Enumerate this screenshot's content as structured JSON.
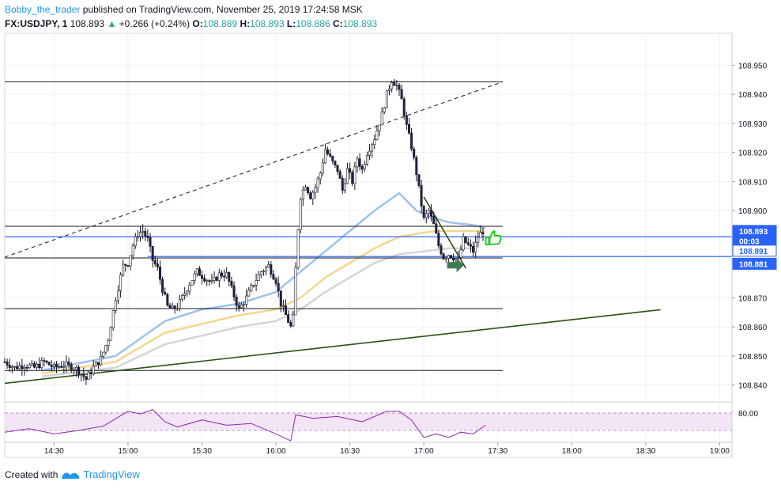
{
  "header": {
    "author": "Bobby_the_trader",
    "published": "published on TradingView.com, November 25, 2019 17:24:58 MSK",
    "symbol": "FX:USDJPY, 1",
    "last": "108.893",
    "arrow": "▲",
    "change": "+0.266 (+0.24%)",
    "o_label": "O:",
    "o": "108.889",
    "h_label": "H:",
    "h": "108.893",
    "l_label": "L:",
    "l": "108.886",
    "c_label": "C:",
    "c": "108.893"
  },
  "footer": {
    "created_with": "Created with",
    "brand": "TradingView"
  },
  "colors": {
    "grid": "#eef0f3",
    "text": "#131722",
    "accent": "#2196f3",
    "candle": "#131722",
    "candle_body": "#2a1f4a",
    "ma_blue": "#9cc2ec",
    "ma_yellow": "#f3d78c",
    "ma_gray": "#d4d4d4",
    "trendline": "#2e4f12",
    "hline_blue": "#2962ff",
    "rsi_line": "#8e24aa",
    "rsi_fill": "#f3e5f5",
    "arrow_green": "#3c7a52",
    "thumb_green": "#22cc22"
  },
  "chart_data": {
    "type": "line",
    "title": "FX:USDJPY, 1",
    "xlabel": "",
    "ylabel": "",
    "x_ticks": [
      "14:30",
      "15:00",
      "15:30",
      "16:00",
      "16:30",
      "17:00",
      "17:30",
      "18:00",
      "18:30",
      "19:00"
    ],
    "y_ticks": [
      "108.950",
      "108.940",
      "108.930",
      "108.920",
      "108.910",
      "108.900",
      "108.870",
      "108.860",
      "108.850",
      "108.840"
    ],
    "ylim": [
      108.835,
      108.961
    ],
    "price_labels": [
      {
        "text": "108.893",
        "price": 108.893,
        "style": "solid"
      },
      {
        "text": "00:03",
        "price": 108.8895,
        "style": "solid"
      },
      {
        "text": "108.891",
        "price": 108.8862,
        "style": "outline"
      },
      {
        "text": "108.881",
        "price": 108.8817,
        "style": "solid"
      }
    ],
    "close_series": [
      [
        "14:10",
        108.848
      ],
      [
        "14:14",
        108.846
      ],
      [
        "14:18",
        108.847
      ],
      [
        "14:22",
        108.846
      ],
      [
        "14:26",
        108.848
      ],
      [
        "14:30",
        108.846
      ],
      [
        "14:34",
        108.847
      ],
      [
        "14:38",
        108.846
      ],
      [
        "14:40",
        108.845
      ],
      [
        "14:43",
        108.842
      ],
      [
        "14:46",
        108.846
      ],
      [
        "14:49",
        108.849
      ],
      [
        "14:52",
        108.856
      ],
      [
        "14:55",
        108.87
      ],
      [
        "14:58",
        108.881
      ],
      [
        "15:00",
        108.882
      ],
      [
        "15:02",
        108.888
      ],
      [
        "15:04",
        108.892
      ],
      [
        "15:06",
        108.893
      ],
      [
        "15:08",
        108.89
      ],
      [
        "15:10",
        108.883
      ],
      [
        "15:12",
        108.88
      ],
      [
        "15:14",
        108.873
      ],
      [
        "15:16",
        108.867
      ],
      [
        "15:18",
        108.866
      ],
      [
        "15:20",
        108.867
      ],
      [
        "15:22",
        108.87
      ],
      [
        "15:25",
        108.875
      ],
      [
        "15:28",
        108.879
      ],
      [
        "15:31",
        108.877
      ],
      [
        "15:34",
        108.875
      ],
      [
        "15:37",
        108.878
      ],
      [
        "15:40",
        108.878
      ],
      [
        "15:42",
        108.873
      ],
      [
        "15:45",
        108.866
      ],
      [
        "15:48",
        108.87
      ],
      [
        "15:51",
        108.875
      ],
      [
        "15:54",
        108.879
      ],
      [
        "15:57",
        108.881
      ],
      [
        "16:00",
        108.876
      ],
      [
        "16:02",
        108.868
      ],
      [
        "16:04",
        108.864
      ],
      [
        "16:06",
        108.86
      ],
      [
        "16:07",
        108.863
      ],
      [
        "16:08",
        108.88
      ],
      [
        "16:09",
        108.894
      ],
      [
        "16:10",
        108.905
      ],
      [
        "16:12",
        108.909
      ],
      [
        "16:14",
        108.905
      ],
      [
        "16:16",
        108.908
      ],
      [
        "16:18",
        108.913
      ],
      [
        "16:20",
        108.921
      ],
      [
        "16:22",
        108.918
      ],
      [
        "16:24",
        108.915
      ],
      [
        "16:25",
        108.914
      ],
      [
        "16:27",
        108.907
      ],
      [
        "16:29",
        108.914
      ],
      [
        "16:31",
        108.91
      ],
      [
        "16:33",
        108.918
      ],
      [
        "16:35",
        108.914
      ],
      [
        "16:37",
        108.92
      ],
      [
        "16:40",
        108.925
      ],
      [
        "16:43",
        108.933
      ],
      [
        "16:45",
        108.94
      ],
      [
        "16:47",
        108.945
      ],
      [
        "16:49",
        108.943
      ],
      [
        "16:51",
        108.938
      ],
      [
        "16:53",
        108.929
      ],
      [
        "16:55",
        108.922
      ],
      [
        "16:57",
        108.913
      ],
      [
        "16:59",
        108.902
      ],
      [
        "17:00",
        108.897
      ],
      [
        "17:02",
        108.9
      ],
      [
        "17:04",
        108.895
      ],
      [
        "17:06",
        108.888
      ],
      [
        "17:08",
        108.884
      ],
      [
        "17:10",
        108.885
      ],
      [
        "17:12",
        108.884
      ],
      [
        "17:14",
        108.883
      ],
      [
        "17:16",
        108.89
      ],
      [
        "17:18",
        108.888
      ],
      [
        "17:20",
        108.886
      ],
      [
        "17:22",
        108.891
      ],
      [
        "17:24",
        108.893
      ]
    ],
    "moving_averages": [
      {
        "color_key": "ma_blue",
        "points": [
          [
            "14:25",
            108.845
          ],
          [
            "14:55",
            108.85
          ],
          [
            "15:05",
            108.856
          ],
          [
            "15:15",
            108.862
          ],
          [
            "15:30",
            108.866
          ],
          [
            "15:45",
            108.868
          ],
          [
            "16:00",
            108.872
          ],
          [
            "16:10",
            108.879
          ],
          [
            "16:20",
            108.886
          ],
          [
            "16:30",
            108.893
          ],
          [
            "16:40",
            108.9
          ],
          [
            "16:50",
            108.906
          ],
          [
            "16:57",
            108.9
          ],
          [
            "17:02",
            108.898
          ],
          [
            "17:10",
            108.896
          ],
          [
            "17:20",
            108.895
          ],
          [
            "17:25",
            108.894
          ]
        ]
      },
      {
        "color_key": "ma_yellow",
        "points": [
          [
            "14:25",
            108.844
          ],
          [
            "14:55",
            108.848
          ],
          [
            "15:05",
            108.853
          ],
          [
            "15:15",
            108.858
          ],
          [
            "15:30",
            108.861
          ],
          [
            "15:45",
            108.864
          ],
          [
            "16:00",
            108.866
          ],
          [
            "16:10",
            108.87
          ],
          [
            "16:20",
            108.877
          ],
          [
            "16:30",
            108.882
          ],
          [
            "16:40",
            108.887
          ],
          [
            "16:50",
            108.891
          ],
          [
            "16:57",
            108.892
          ],
          [
            "17:05",
            108.893
          ],
          [
            "17:15",
            108.893
          ],
          [
            "17:25",
            108.893
          ]
        ]
      },
      {
        "color_key": "ma_gray",
        "points": [
          [
            "14:25",
            108.843
          ],
          [
            "14:55",
            108.846
          ],
          [
            "15:05",
            108.85
          ],
          [
            "15:15",
            108.854
          ],
          [
            "15:30",
            108.857
          ],
          [
            "15:45",
            108.86
          ],
          [
            "16:00",
            108.862
          ],
          [
            "16:10",
            108.866
          ],
          [
            "16:20",
            108.872
          ],
          [
            "16:30",
            108.877
          ],
          [
            "16:40",
            108.882
          ],
          [
            "16:50",
            108.885
          ],
          [
            "17:00",
            108.886
          ],
          [
            "17:10",
            108.887
          ],
          [
            "17:20",
            108.887
          ]
        ]
      }
    ],
    "horizontal_levels": [
      {
        "price": 108.9443,
        "from": "14:10",
        "to": "17:32",
        "color_key": "candle"
      },
      {
        "price": 108.8946,
        "from": "14:10",
        "to": "17:32",
        "color_key": "candle"
      },
      {
        "price": 108.8837,
        "from": "14:10",
        "to": "17:32",
        "color_key": "candle"
      },
      {
        "price": 108.8663,
        "from": "14:10",
        "to": "17:32",
        "color_key": "candle"
      },
      {
        "price": 108.845,
        "from": "14:10",
        "to": "17:32",
        "color_key": "candle"
      },
      {
        "price": 108.891,
        "from": "14:10",
        "to": "19:05",
        "color_key": "hline_blue"
      },
      {
        "price": 108.8842,
        "from": "15:08",
        "to": "19:05",
        "color_key": "hline_blue"
      }
    ],
    "trendlines": [
      {
        "from": [
          "14:10",
          108.8406
        ],
        "to": [
          "18:36",
          108.8659
        ],
        "color_key": "trendline",
        "dashed": false
      },
      {
        "from": [
          "14:10",
          108.884
        ],
        "to": [
          "17:32",
          108.9443
        ],
        "color_key": "candle",
        "dashed": true
      },
      {
        "from": [
          "17:00",
          108.9047
        ],
        "to": [
          "17:17",
          108.8802
        ],
        "color_key": "trendline",
        "dashed": false
      }
    ],
    "rsi": {
      "upper": 80,
      "ylim": [
        0,
        100
      ],
      "points": [
        [
          "14:10",
          58
        ],
        [
          "14:20",
          62
        ],
        [
          "14:30",
          56
        ],
        [
          "14:40",
          60
        ],
        [
          "14:50",
          65
        ],
        [
          "15:00",
          82
        ],
        [
          "15:05",
          79
        ],
        [
          "15:10",
          84
        ],
        [
          "15:15",
          70
        ],
        [
          "15:20",
          64
        ],
        [
          "15:30",
          72
        ],
        [
          "15:40",
          66
        ],
        [
          "15:50",
          68
        ],
        [
          "16:00",
          56
        ],
        [
          "16:06",
          48
        ],
        [
          "16:08",
          78
        ],
        [
          "16:15",
          74
        ],
        [
          "16:25",
          76
        ],
        [
          "16:35",
          70
        ],
        [
          "16:45",
          82
        ],
        [
          "16:50",
          82
        ],
        [
          "16:55",
          72
        ],
        [
          "17:00",
          52
        ],
        [
          "17:05",
          56
        ],
        [
          "17:10",
          52
        ],
        [
          "17:15",
          58
        ],
        [
          "17:20",
          56
        ],
        [
          "17:25",
          66
        ]
      ]
    }
  }
}
